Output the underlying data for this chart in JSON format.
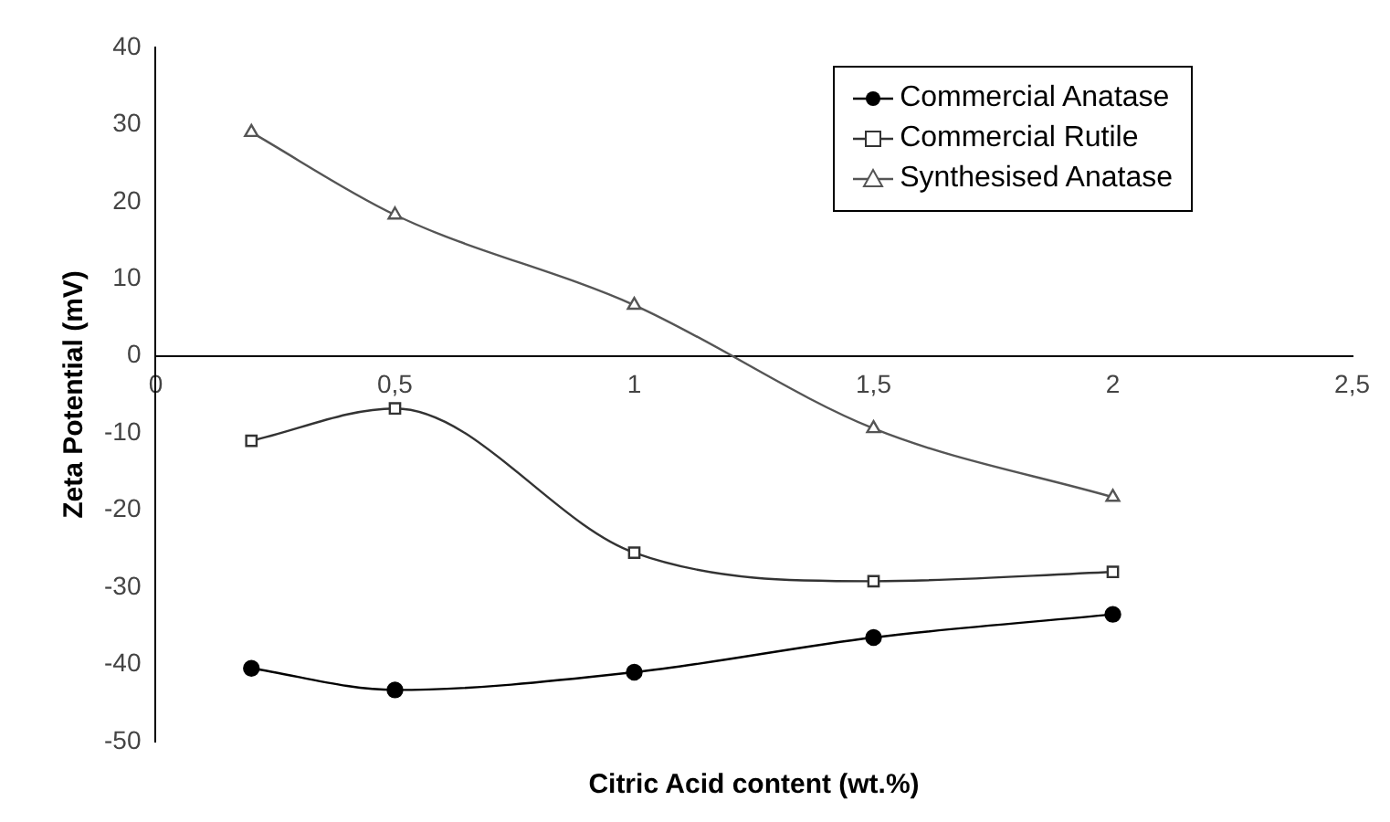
{
  "chart_data": {
    "type": "line",
    "xlabel": "Citric Acid content (wt.%)",
    "ylabel": "Zeta Potential (mV)",
    "x": [
      0.2,
      0.5,
      1,
      1.5,
      2
    ],
    "series": [
      {
        "name": "Commercial Anatase",
        "color": "#000000",
        "values": [
          -40.5,
          -43.3,
          -41,
          -36.5,
          -33.5
        ],
        "marker": "circle"
      },
      {
        "name": "Commercial Rutile",
        "color": "#333333",
        "values": [
          -11,
          -6.8,
          -25.5,
          -29.2,
          -28
        ],
        "marker": "square"
      },
      {
        "name": "Synthesised Anatase",
        "color": "#555555",
        "values": [
          29,
          18.3,
          6.6,
          -9.4,
          -18.3
        ],
        "marker": "triangle"
      }
    ],
    "xlim": [
      0,
      2.5
    ],
    "xticks": [
      0,
      {
        "value": 0.5,
        "label": "0,5"
      },
      1,
      {
        "value": 1.5,
        "label": "1,5"
      },
      2,
      {
        "value": 2.5,
        "label": "2,5"
      }
    ],
    "ylim": [
      -50,
      40
    ],
    "yticks": [
      -50,
      -40,
      -30,
      -20,
      -10,
      0,
      10,
      20,
      30,
      40
    ],
    "grid": false,
    "legend": "top right"
  }
}
